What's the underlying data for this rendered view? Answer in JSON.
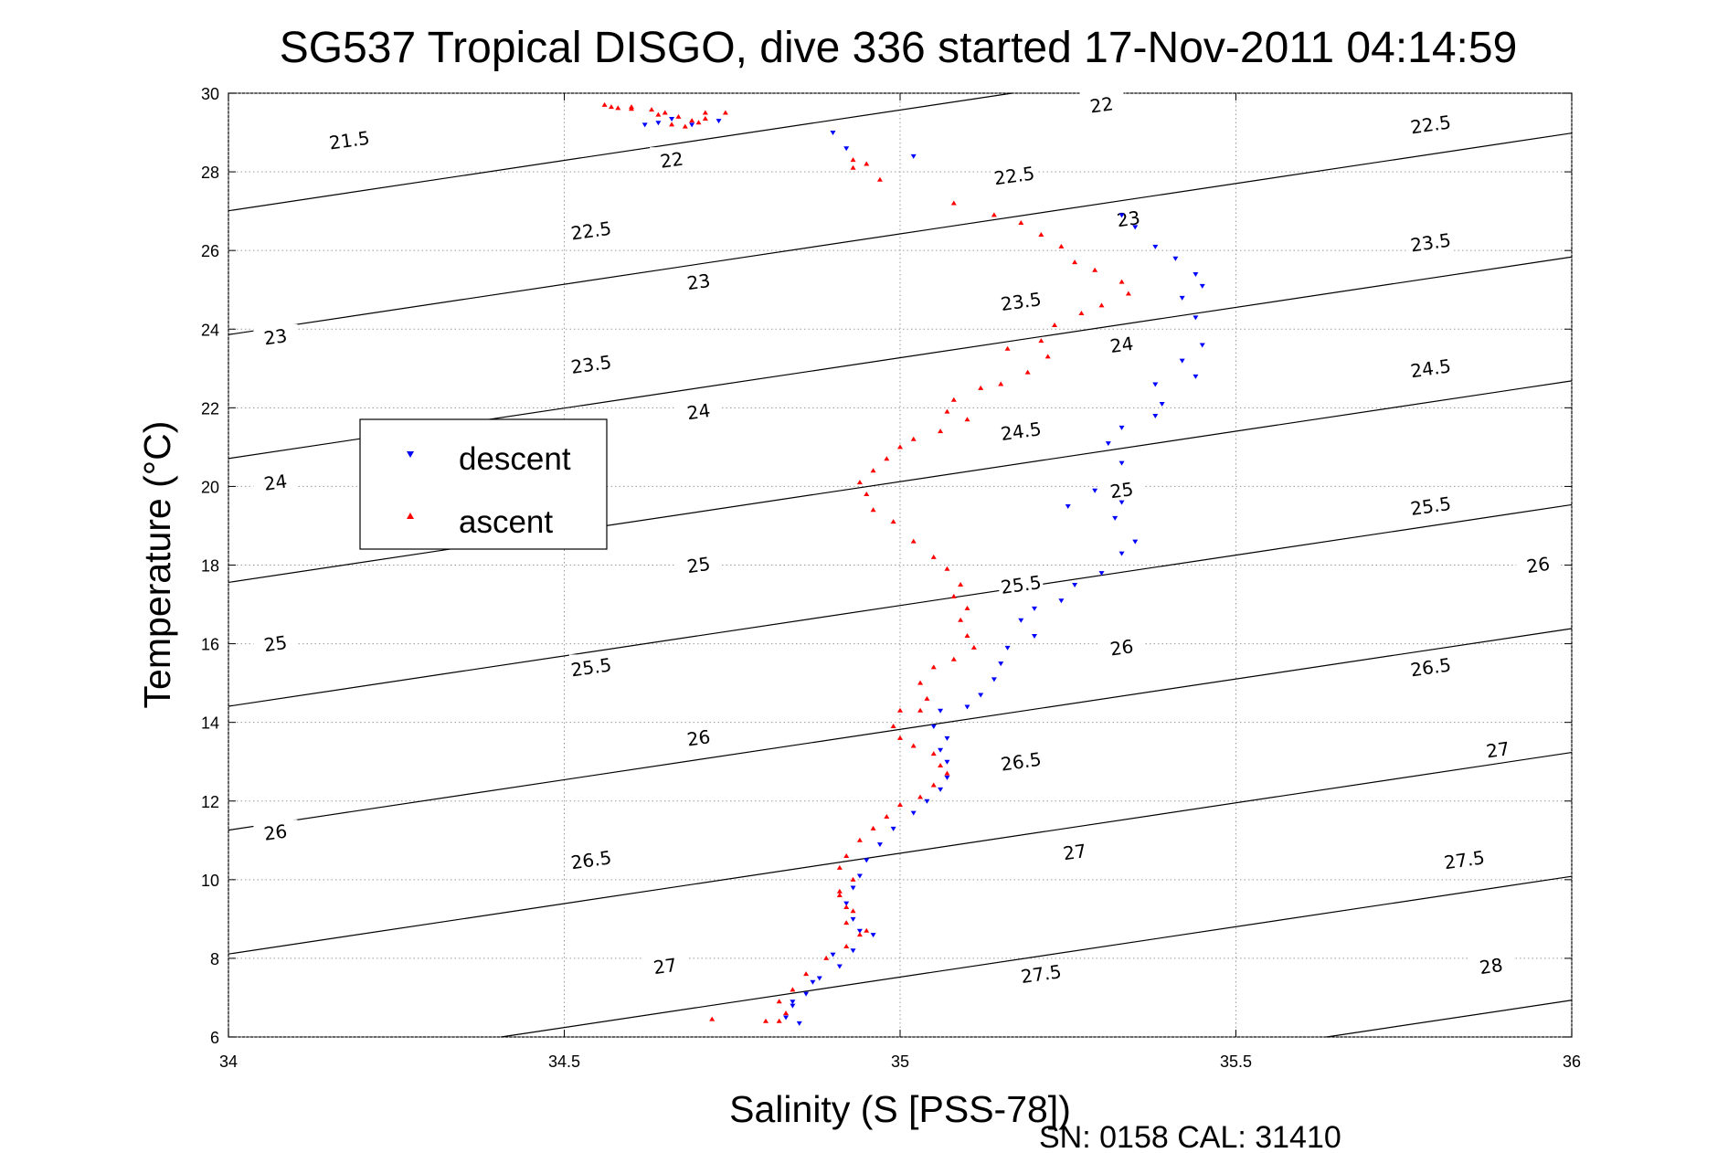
{
  "chart_data": {
    "type": "scatter",
    "title": "SG537 Tropical DISGO, dive 336 started 17-Nov-2011 04:14:59",
    "xlabel": "Salinity (S [PSS-78])",
    "ylabel": "Temperature (°C)",
    "xlim": [
      34,
      36
    ],
    "ylim": [
      6,
      30
    ],
    "x_ticks": [
      "34",
      "34.5",
      "35",
      "35.5",
      "36"
    ],
    "y_ticks": [
      "6",
      "8",
      "10",
      "12",
      "14",
      "16",
      "18",
      "20",
      "22",
      "24",
      "26",
      "28",
      "30"
    ],
    "grid": true,
    "legend_position": "left",
    "footer": "SN: 0158  CAL: 31410",
    "density_contours": {
      "line_color": "#000000",
      "levels": [
        "21.5",
        "22",
        "22.5",
        "23",
        "23.5",
        "24",
        "24.5",
        "25",
        "25.5",
        "26",
        "26.5",
        "27",
        "27.5",
        "28"
      ],
      "labels": [
        {
          "text": "21.5",
          "s": 34.18,
          "t": 28.8
        },
        {
          "text": "22",
          "s": 34.66,
          "t": 28.3
        },
        {
          "text": "22",
          "s": 35.3,
          "t": 29.7
        },
        {
          "text": "22.5",
          "s": 34.54,
          "t": 26.5
        },
        {
          "text": "22.5",
          "s": 35.17,
          "t": 27.9
        },
        {
          "text": "22.5",
          "s": 35.79,
          "t": 29.2
        },
        {
          "text": "23",
          "s": 34.07,
          "t": 23.8
        },
        {
          "text": "23",
          "s": 34.7,
          "t": 25.2
        },
        {
          "text": "23",
          "s": 35.34,
          "t": 26.8
        },
        {
          "text": "23.5",
          "s": 34.54,
          "t": 23.1
        },
        {
          "text": "23.5",
          "s": 35.18,
          "t": 24.7
        },
        {
          "text": "23.5",
          "s": 35.79,
          "t": 26.2
        },
        {
          "text": "24",
          "s": 34.07,
          "t": 20.1
        },
        {
          "text": "24",
          "s": 34.7,
          "t": 21.9
        },
        {
          "text": "24",
          "s": 35.33,
          "t": 23.6
        },
        {
          "text": "24.5",
          "s": 35.18,
          "t": 21.4
        },
        {
          "text": "24.5",
          "s": 35.79,
          "t": 23.0
        },
        {
          "text": "25",
          "s": 34.07,
          "t": 16.0
        },
        {
          "text": "25",
          "s": 34.7,
          "t": 18.0
        },
        {
          "text": "25",
          "s": 35.33,
          "t": 19.9
        },
        {
          "text": "25.5",
          "s": 34.54,
          "t": 15.4
        },
        {
          "text": "25.5",
          "s": 35.18,
          "t": 17.5
        },
        {
          "text": "25.5",
          "s": 35.79,
          "t": 19.5
        },
        {
          "text": "26",
          "s": 34.07,
          "t": 11.2
        },
        {
          "text": "26",
          "s": 34.7,
          "t": 13.6
        },
        {
          "text": "26",
          "s": 35.33,
          "t": 15.9
        },
        {
          "text": "26",
          "s": 35.95,
          "t": 18.0
        },
        {
          "text": "26.5",
          "s": 34.54,
          "t": 10.5
        },
        {
          "text": "26.5",
          "s": 35.18,
          "t": 13.0
        },
        {
          "text": "26.5",
          "s": 35.79,
          "t": 15.4
        },
        {
          "text": "27",
          "s": 34.65,
          "t": 7.8
        },
        {
          "text": "27",
          "s": 35.26,
          "t": 10.7
        },
        {
          "text": "27",
          "s": 35.89,
          "t": 13.3
        },
        {
          "text": "27.5",
          "s": 35.21,
          "t": 7.6
        },
        {
          "text": "27.5",
          "s": 35.84,
          "t": 10.5
        },
        {
          "text": "28",
          "s": 35.88,
          "t": 7.8
        }
      ]
    },
    "series": [
      {
        "name": "descent",
        "color": "#0000ff",
        "marker": "triangle-down",
        "points": [
          [
            34.62,
            29.2
          ],
          [
            34.64,
            29.25
          ],
          [
            34.66,
            29.35
          ],
          [
            34.69,
            29.2
          ],
          [
            34.73,
            29.3
          ],
          [
            34.9,
            29.0
          ],
          [
            34.92,
            28.6
          ],
          [
            35.02,
            28.4
          ],
          [
            35.33,
            26.9
          ],
          [
            35.35,
            26.6
          ],
          [
            35.38,
            26.1
          ],
          [
            35.41,
            25.8
          ],
          [
            35.44,
            25.4
          ],
          [
            35.45,
            25.1
          ],
          [
            35.42,
            24.8
          ],
          [
            35.44,
            24.3
          ],
          [
            35.45,
            23.6
          ],
          [
            35.42,
            23.2
          ],
          [
            35.44,
            22.8
          ],
          [
            35.38,
            22.6
          ],
          [
            35.39,
            22.1
          ],
          [
            35.38,
            21.8
          ],
          [
            35.33,
            21.5
          ],
          [
            35.31,
            21.1
          ],
          [
            35.33,
            20.6
          ],
          [
            35.29,
            19.9
          ],
          [
            35.33,
            19.6
          ],
          [
            35.25,
            19.5
          ],
          [
            35.32,
            19.2
          ],
          [
            35.35,
            18.6
          ],
          [
            35.33,
            18.3
          ],
          [
            35.3,
            17.8
          ],
          [
            35.26,
            17.5
          ],
          [
            35.24,
            17.1
          ],
          [
            35.2,
            16.9
          ],
          [
            35.18,
            16.6
          ],
          [
            35.2,
            16.2
          ],
          [
            35.16,
            15.9
          ],
          [
            35.15,
            15.5
          ],
          [
            35.14,
            15.1
          ],
          [
            35.12,
            14.7
          ],
          [
            35.1,
            14.4
          ],
          [
            35.06,
            14.3
          ],
          [
            35.05,
            13.9
          ],
          [
            35.07,
            13.6
          ],
          [
            35.06,
            13.3
          ],
          [
            35.07,
            13.0
          ],
          [
            35.07,
            12.6
          ],
          [
            35.06,
            12.3
          ],
          [
            35.04,
            12.0
          ],
          [
            35.02,
            11.7
          ],
          [
            34.99,
            11.3
          ],
          [
            34.97,
            10.9
          ],
          [
            34.95,
            10.5
          ],
          [
            34.94,
            10.1
          ],
          [
            34.93,
            9.8
          ],
          [
            34.92,
            9.4
          ],
          [
            34.93,
            9.0
          ],
          [
            34.94,
            8.7
          ],
          [
            34.96,
            8.6
          ],
          [
            34.93,
            8.2
          ],
          [
            34.91,
            7.8
          ],
          [
            34.88,
            7.5
          ],
          [
            34.86,
            7.1
          ],
          [
            34.84,
            6.8
          ],
          [
            34.83,
            6.5
          ],
          [
            34.85,
            6.35
          ],
          [
            34.84,
            6.9
          ],
          [
            34.87,
            7.4
          ],
          [
            34.9,
            8.1
          ]
        ]
      },
      {
        "name": "ascent",
        "color": "#ff0000",
        "marker": "triangle-up",
        "points": [
          [
            34.56,
            29.7
          ],
          [
            34.57,
            29.65
          ],
          [
            34.6,
            29.6
          ],
          [
            34.63,
            29.58
          ],
          [
            34.65,
            29.5
          ],
          [
            34.67,
            29.4
          ],
          [
            34.69,
            29.3
          ],
          [
            34.71,
            29.35
          ],
          [
            34.68,
            29.15
          ],
          [
            34.66,
            29.2
          ],
          [
            34.71,
            29.5
          ],
          [
            34.74,
            29.5
          ],
          [
            34.6,
            29.65
          ],
          [
            34.58,
            29.62
          ],
          [
            34.64,
            29.45
          ],
          [
            34.7,
            29.25
          ],
          [
            34.93,
            28.3
          ],
          [
            34.95,
            28.2
          ],
          [
            34.93,
            28.1
          ],
          [
            34.97,
            27.8
          ],
          [
            35.08,
            27.2
          ],
          [
            35.14,
            26.9
          ],
          [
            35.18,
            26.7
          ],
          [
            35.21,
            26.4
          ],
          [
            35.24,
            26.1
          ],
          [
            35.26,
            25.7
          ],
          [
            35.29,
            25.5
          ],
          [
            35.33,
            25.2
          ],
          [
            35.34,
            24.9
          ],
          [
            35.3,
            24.6
          ],
          [
            35.27,
            24.4
          ],
          [
            35.23,
            24.1
          ],
          [
            35.21,
            23.7
          ],
          [
            35.16,
            23.5
          ],
          [
            35.22,
            23.3
          ],
          [
            35.19,
            22.9
          ],
          [
            35.15,
            22.6
          ],
          [
            35.12,
            22.5
          ],
          [
            35.08,
            22.2
          ],
          [
            35.07,
            21.9
          ],
          [
            35.1,
            21.7
          ],
          [
            35.06,
            21.4
          ],
          [
            35.02,
            21.2
          ],
          [
            35.0,
            21.0
          ],
          [
            34.98,
            20.7
          ],
          [
            34.96,
            20.4
          ],
          [
            34.94,
            20.1
          ],
          [
            34.95,
            19.8
          ],
          [
            34.96,
            19.4
          ],
          [
            34.99,
            19.1
          ],
          [
            35.02,
            18.6
          ],
          [
            35.05,
            18.2
          ],
          [
            35.07,
            17.9
          ],
          [
            35.09,
            17.5
          ],
          [
            35.08,
            17.2
          ],
          [
            35.1,
            16.9
          ],
          [
            35.09,
            16.6
          ],
          [
            35.1,
            16.2
          ],
          [
            35.11,
            15.9
          ],
          [
            35.08,
            15.6
          ],
          [
            35.05,
            15.4
          ],
          [
            35.03,
            15.0
          ],
          [
            35.04,
            14.6
          ],
          [
            35.0,
            14.3
          ],
          [
            35.03,
            14.3
          ],
          [
            34.99,
            13.9
          ],
          [
            35.0,
            13.6
          ],
          [
            35.02,
            13.4
          ],
          [
            35.05,
            13.2
          ],
          [
            35.06,
            12.9
          ],
          [
            35.07,
            12.7
          ],
          [
            35.05,
            12.4
          ],
          [
            35.03,
            12.1
          ],
          [
            35.0,
            11.9
          ],
          [
            34.98,
            11.6
          ],
          [
            34.96,
            11.3
          ],
          [
            34.94,
            11.0
          ],
          [
            34.92,
            10.6
          ],
          [
            34.91,
            10.3
          ],
          [
            34.93,
            10.0
          ],
          [
            34.91,
            9.7
          ],
          [
            34.92,
            9.3
          ],
          [
            34.92,
            8.9
          ],
          [
            34.94,
            8.6
          ],
          [
            34.92,
            8.3
          ],
          [
            34.89,
            8.0
          ],
          [
            34.86,
            7.6
          ],
          [
            34.84,
            7.2
          ],
          [
            34.82,
            6.9
          ],
          [
            34.83,
            6.6
          ],
          [
            34.82,
            6.4
          ],
          [
            34.8,
            6.4
          ],
          [
            34.72,
            6.45
          ],
          [
            34.95,
            8.7
          ],
          [
            34.93,
            9.2
          ],
          [
            34.91,
            9.6
          ]
        ]
      }
    ]
  }
}
